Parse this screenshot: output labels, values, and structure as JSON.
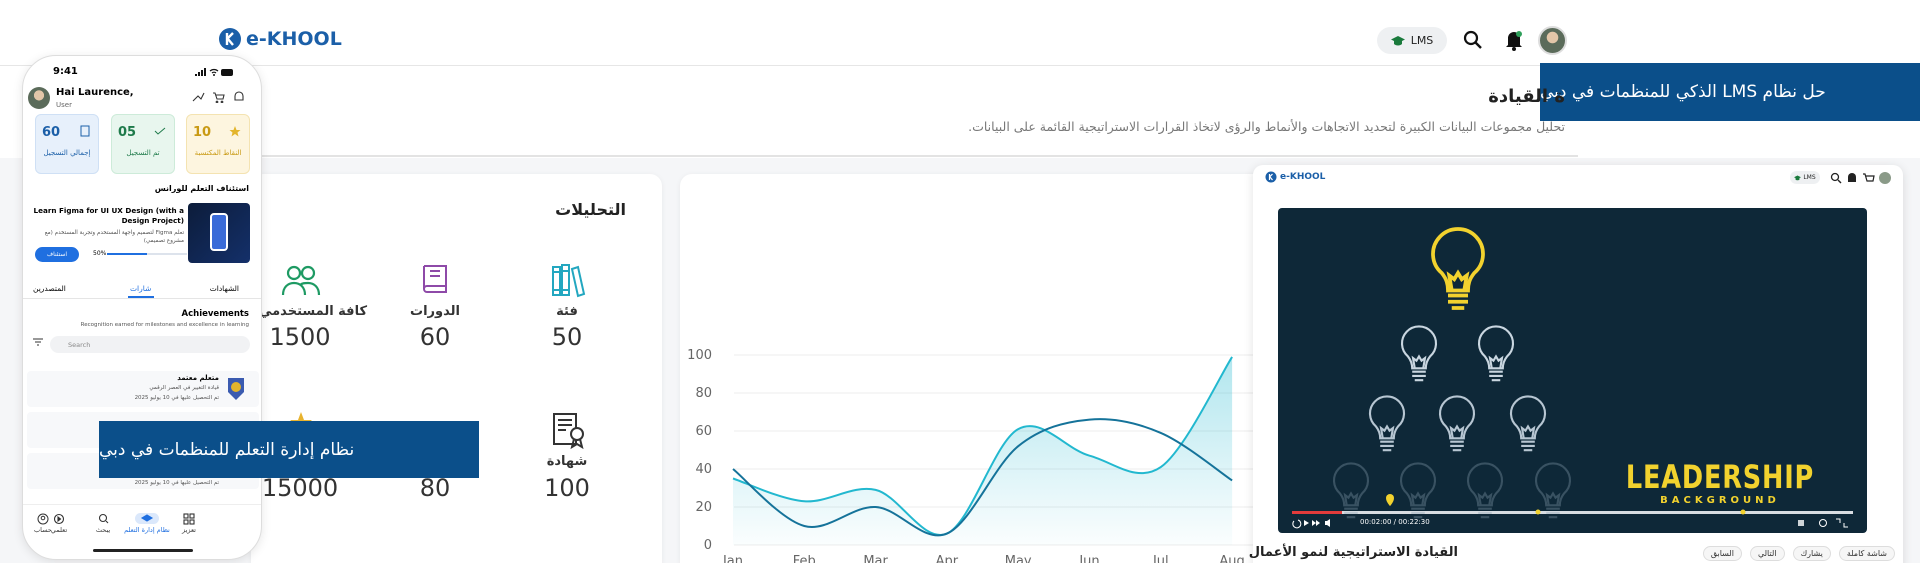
{
  "header": {
    "logo": "e-KHOOL",
    "badge": "LMS"
  },
  "banner_top": "حل نظام LMS الذكي للمنظمات في دبي",
  "page": {
    "title": "ة القيادة",
    "subtitle": "تحليل مجموعات البيانات الكبيرة لتحديد الاتجاهات والأنماط والرؤى لاتخاذ القرارات الاستراتيجية القائمة على البيانات."
  },
  "analytics": {
    "title": "التحليلات",
    "stats": [
      {
        "label": "فئة",
        "value": 50
      },
      {
        "label": "الدورات",
        "value": 60
      },
      {
        "label": "كافة المستخدمي",
        "value": 1500
      },
      {
        "label": "شهادة",
        "value": 100
      },
      {
        "value": 80
      },
      {
        "value": 15000
      }
    ]
  },
  "chart_data": {
    "type": "line",
    "categories": [
      "Jan",
      "Feb",
      "Mar",
      "Apr",
      "May",
      "Jun",
      "Jul",
      "Aug"
    ],
    "series": [
      {
        "color": "#22b8cf",
        "values": [
          35,
          23,
          29,
          6,
          61,
          47,
          41,
          99
        ]
      },
      {
        "color": "#15739a",
        "values": [
          40,
          10,
          20,
          6,
          52,
          66,
          59,
          34
        ]
      }
    ],
    "ylim": [
      0,
      100
    ],
    "yticks": [
      0,
      20,
      40,
      60,
      80,
      100
    ],
    "grid": true
  },
  "video": {
    "logo": "e-KHOOL",
    "badge": "LMS",
    "headline": "LEADERSHIP",
    "subheadline": "BACKGROUND",
    "time": "00:02:00 / 00:22:30",
    "title": "القيادة الاستراتيجية لنمو الأعمال",
    "actions": [
      "شاشة كاملة",
      "يشارك",
      "التالي",
      "السابق"
    ]
  },
  "phone": {
    "time": "9:41",
    "greeting": "Hai Laurence,",
    "role": "User",
    "cards": [
      {
        "value": "60",
        "label": "إجمالي التسجيل"
      },
      {
        "value": "05",
        "label": "تم التسجيل"
      },
      {
        "value": "10",
        "label": "النقاط المكتسبة"
      }
    ],
    "resume_title": "استئناف التعلم للورانس",
    "course": {
      "title": "Learn Figma for UI UX Design (with a Design Project)",
      "description": "تعلم Figma لتصميم واجهة المستخدم وتجربة المستخدم (مع مشروع تصميمي)",
      "progress": "50%",
      "button": "استئناف"
    },
    "tabs": [
      "الشهادات",
      "شارات",
      "المتصدرين"
    ],
    "achievements_title": "Achievements",
    "achievements_subtitle": "Recognition earned for milestones and excellence in learning",
    "search_placeholder": "Search",
    "items": [
      {
        "title": "متعلم معتمد",
        "subtitle": "قيادة التغيير في العصر الرقمي",
        "date": "تم التحصيل عليها في 10 يوليو 2025"
      },
      {
        "date": "تم التحصيل عليها في 10 يوليو 2025"
      }
    ],
    "nav": [
      "تعزيز",
      "نظام إدارة التعلم",
      "يبحث",
      "تعلمي",
      "حساب"
    ]
  },
  "banner_overlay": "نظام إدارة التعلم للمنظمات في دبي"
}
